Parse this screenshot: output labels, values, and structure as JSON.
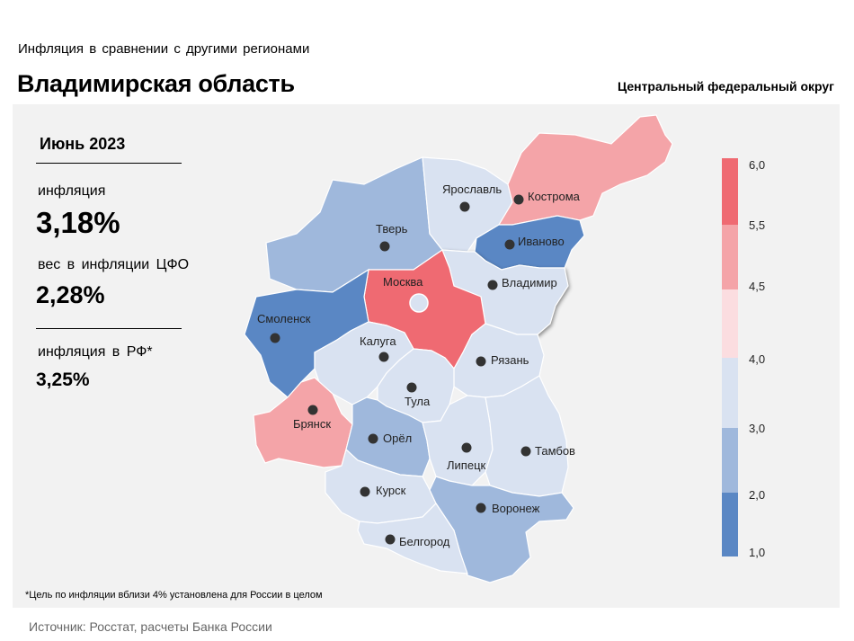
{
  "header": {
    "supertitle": "Инфляция в сравнении с другими регионами",
    "title": "Владимирская область",
    "district": "Центральный федеральный округ"
  },
  "stats": {
    "period": "Июнь 2023",
    "inflation_label": "инфляция",
    "inflation_value": "3,18%",
    "weight_label": "вес в инфляции ЦФО",
    "weight_value": "2,28%",
    "rf_label": "инфляция в РФ*",
    "rf_value": "3,25%"
  },
  "footnote": "*Цель по инфляции вблизи 4% установлена для России в целом",
  "source": "Источник: Росстат, расчеты Банка России",
  "colors": {
    "bin_1_2": "#5a87c4",
    "bin_2_3": "#9fb8dc",
    "bin_3_4": "#d9e2f1",
    "bin_4_4_5": "#fbdde0",
    "bin_4_5_5_5": "#f4a4a8",
    "bin_5_5_6": "#ef6a72",
    "highlight_outline": "#ffffff"
  },
  "legend": {
    "ticks": [
      "6,0",
      "5,5",
      "4,5",
      "4,0",
      "3,0",
      "2,0",
      "1,0"
    ]
  },
  "map": {
    "selected_region": "Владимир",
    "regions": [
      {
        "label": "Ярославль",
        "bin": "3-4"
      },
      {
        "label": "Кострома",
        "bin": "4.5-5.5"
      },
      {
        "label": "Тверь",
        "bin": "2-3"
      },
      {
        "label": "Иваново",
        "bin": "1-2"
      },
      {
        "label": "Москва",
        "bin": "5.5-6"
      },
      {
        "label": "Владимир",
        "bin": "3-4"
      },
      {
        "label": "Смоленск",
        "bin": "1-2"
      },
      {
        "label": "Калуга",
        "bin": "3-4"
      },
      {
        "label": "Рязань",
        "bin": "3-4"
      },
      {
        "label": "Тула",
        "bin": "3-4"
      },
      {
        "label": "Брянск",
        "bin": "4.5-5.5"
      },
      {
        "label": "Орёл",
        "bin": "2-3"
      },
      {
        "label": "Липецк",
        "bin": "3-4"
      },
      {
        "label": "Тамбов",
        "bin": "3-4"
      },
      {
        "label": "Курск",
        "bin": "3-4"
      },
      {
        "label": "Воронеж",
        "bin": "2-3"
      },
      {
        "label": "Белгород",
        "bin": "3-4"
      }
    ]
  }
}
